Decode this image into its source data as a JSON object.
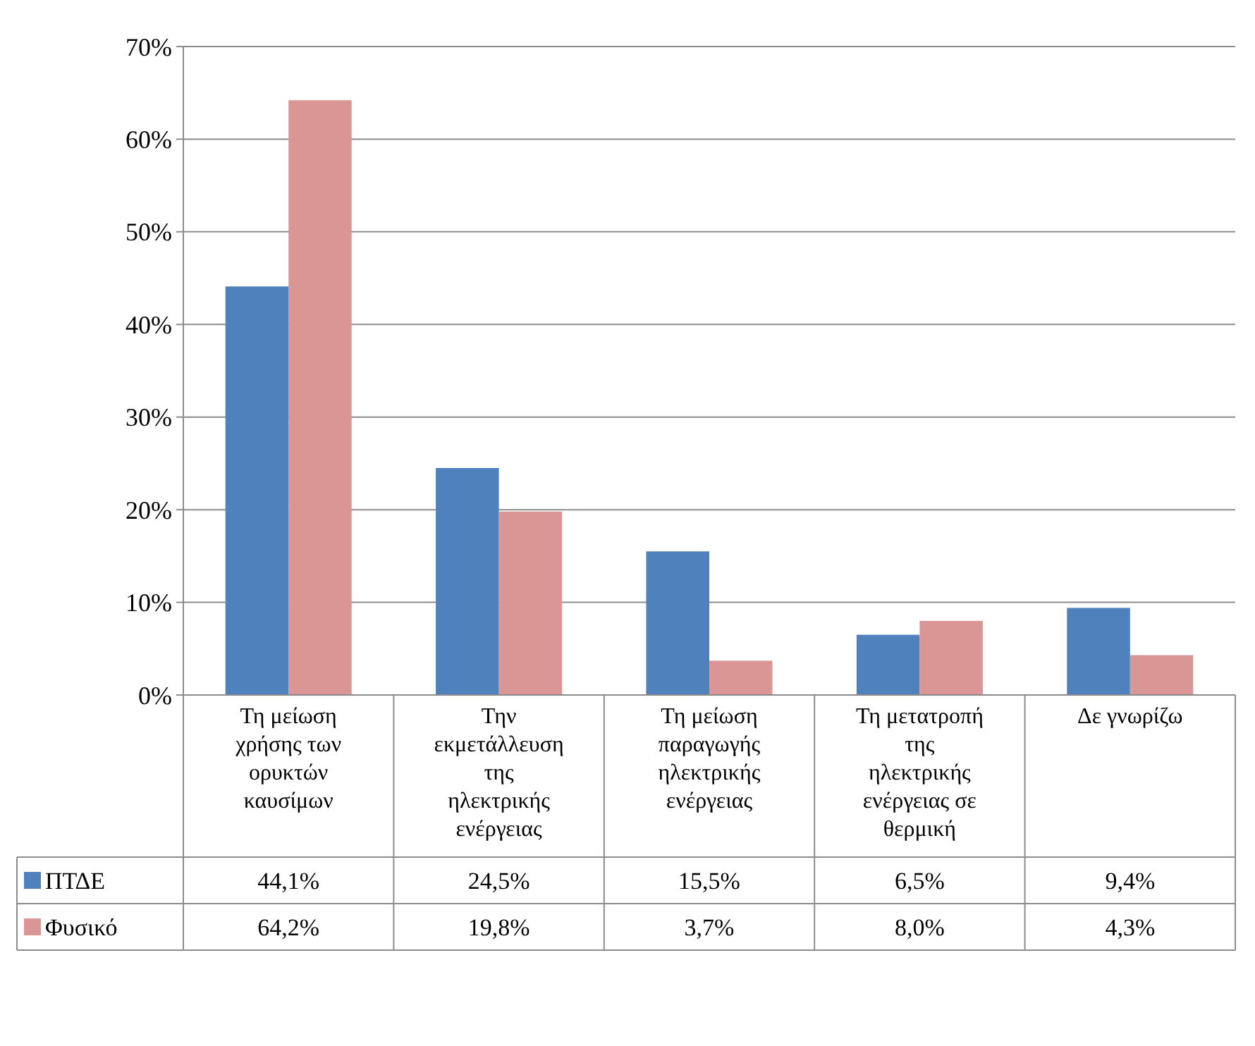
{
  "chart_data": {
    "type": "bar",
    "categories": [
      "Τη μείωση χρήσης των ορυκτών καυσίμων",
      "Την εκμετάλλευση της ηλεκτρικής ενέργειας",
      "Τη μείωση παραγωγής ηλεκτρικής ενέργειας",
      "Τη μετατροπή της ηλεκτρικής ενέργειας σε θερμική",
      "Δε γνωρίζω"
    ],
    "series": [
      {
        "name": "ΠΤΔΕ",
        "color": "#4f81bd",
        "values": [
          44.1,
          24.5,
          15.5,
          6.5,
          9.4
        ],
        "value_labels": [
          "44,1%",
          "24,5%",
          "15,5%",
          "6,5%",
          "9,4%"
        ]
      },
      {
        "name": "Φυσικό",
        "color": "#d99694",
        "values": [
          64.2,
          19.8,
          3.7,
          8.0,
          4.3
        ],
        "value_labels": [
          "64,2%",
          "19,8%",
          "3,7%",
          "8,0%",
          "4,3%"
        ]
      }
    ],
    "ylim": [
      0,
      70
    ],
    "yticks": [
      {
        "value": 0,
        "label": "0%"
      },
      {
        "value": 10,
        "label": "10%"
      },
      {
        "value": 20,
        "label": "20%"
      },
      {
        "value": 30,
        "label": "30%"
      },
      {
        "value": 40,
        "label": "40%"
      },
      {
        "value": 50,
        "label": "50%"
      },
      {
        "value": 60,
        "label": "60%"
      },
      {
        "value": 70,
        "label": "70%"
      }
    ],
    "grid": "y",
    "legend": "bottom left"
  }
}
